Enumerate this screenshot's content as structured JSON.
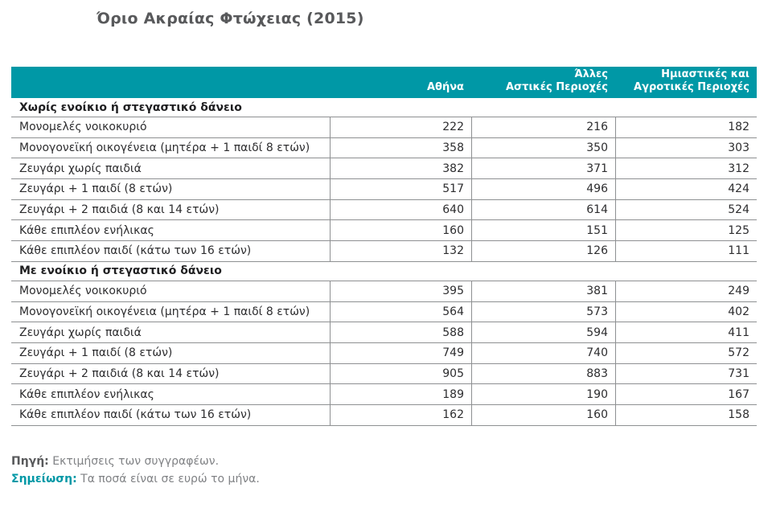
{
  "title": "Όριο Ακραίας Φτώχειας (2015)",
  "colors": {
    "accent_teal": "#0098a6",
    "title_gray": "#58595b",
    "body_text": "#2d2d2f",
    "grid_line": "#8e9092",
    "footnote_gray": "#808285"
  },
  "table": {
    "columns": [
      {
        "label": "Αθήνα",
        "lines": [
          "Αθήνα"
        ]
      },
      {
        "label": "Άλλες Αστικές Περιοχές",
        "lines": [
          "Άλλες",
          "Αστικές Περιοχές"
        ]
      },
      {
        "label": "Ημιαστικές και Αγροτικές Περιοχές",
        "lines": [
          "Ημιαστικές και",
          "Αγροτικές Περιοχές"
        ]
      }
    ],
    "sections": [
      {
        "header": "Χωρίς ενοίκιο ή στεγαστικό δάνειο",
        "rows": [
          {
            "label": "Μονομελές νοικοκυριό",
            "values": [
              "222",
              "216",
              "182"
            ]
          },
          {
            "label": "Μονογονεϊκή οικογένεια (μητέρα + 1 παιδί 8 ετών)",
            "values": [
              "358",
              "350",
              "303"
            ]
          },
          {
            "label": "Ζευγάρι χωρίς παιδιά",
            "values": [
              "382",
              "371",
              "312"
            ]
          },
          {
            "label": "Ζευγάρι + 1 παιδί (8 ετών)",
            "values": [
              "517",
              "496",
              "424"
            ]
          },
          {
            "label": "Ζευγάρι + 2 παιδιά (8 και 14 ετών)",
            "values": [
              "640",
              "614",
              "524"
            ]
          },
          {
            "label": "Κάθε επιπλέον ενήλικας",
            "values": [
              "160",
              "151",
              "125"
            ]
          },
          {
            "label": "Κάθε επιπλέον παιδί (κάτω των 16 ετών)",
            "values": [
              "132",
              "126",
              "111"
            ]
          }
        ]
      },
      {
        "header": "Με ενοίκιο ή στεγαστικό δάνειο",
        "rows": [
          {
            "label": "Μονομελές νοικοκυριό",
            "values": [
              "395",
              "381",
              "249"
            ]
          },
          {
            "label": "Μονογονεϊκή οικογένεια (μητέρα + 1 παιδί 8 ετών)",
            "values": [
              "564",
              "573",
              "402"
            ]
          },
          {
            "label": "Ζευγάρι χωρίς παιδιά",
            "values": [
              "588",
              "594",
              "411"
            ]
          },
          {
            "label": "Ζευγάρι + 1 παιδί (8 ετών)",
            "values": [
              "749",
              "740",
              "572"
            ]
          },
          {
            "label": "Ζευγάρι + 2 παιδιά (8 και 14 ετών)",
            "values": [
              "905",
              "883",
              "731"
            ]
          },
          {
            "label": "Κάθε επιπλέον ενήλικας",
            "values": [
              "189",
              "190",
              "167"
            ]
          },
          {
            "label": "Κάθε επιπλέον παιδί (κάτω των 16 ετών)",
            "values": [
              "162",
              "160",
              "158"
            ]
          }
        ]
      }
    ]
  },
  "footer": {
    "source_label": "Πηγή:",
    "source_text": "Εκτιμήσεις των συγγραφέων.",
    "note_label": "Σημείωση:",
    "note_text": "Τα ποσά είναι σε ευρώ το μήνα."
  },
  "chart_data": {
    "type": "table",
    "title": "Όριο Ακραίας Φτώχειας (2015)",
    "columns": [
      "Αθήνα",
      "Άλλες Αστικές Περιοχές",
      "Ημιαστικές και Αγροτικές Περιοχές"
    ],
    "sections": [
      {
        "name": "Χωρίς ενοίκιο ή στεγαστικό δάνειο",
        "rows": [
          [
            "Μονομελές νοικοκυριό",
            222,
            216,
            182
          ],
          [
            "Μονογονεϊκή οικογένεια (μητέρα + 1 παιδί 8 ετών)",
            358,
            350,
            303
          ],
          [
            "Ζευγάρι χωρίς παιδιά",
            382,
            371,
            312
          ],
          [
            "Ζευγάρι + 1 παιδί (8 ετών)",
            517,
            496,
            424
          ],
          [
            "Ζευγάρι + 2 παιδιά (8 και 14 ετών)",
            640,
            614,
            524
          ],
          [
            "Κάθε επιπλέον ενήλικας",
            160,
            151,
            125
          ],
          [
            "Κάθε επιπλέον παιδί (κάτω των 16 ετών)",
            132,
            126,
            111
          ]
        ]
      },
      {
        "name": "Με ενοίκιο ή στεγαστικό δάνειο",
        "rows": [
          [
            "Μονομελές νοικοκυριό",
            395,
            381,
            249
          ],
          [
            "Μονογονεϊκή οικογένεια (μητέρα + 1 παιδί 8 ετών)",
            564,
            573,
            402
          ],
          [
            "Ζευγάρι χωρίς παιδιά",
            588,
            594,
            411
          ],
          [
            "Ζευγάρι + 1 παιδί (8 ετών)",
            749,
            740,
            572
          ],
          [
            "Ζευγάρι + 2 παιδιά (8 και 14 ετών)",
            905,
            883,
            731
          ],
          [
            "Κάθε επιπλέον ενήλικας",
            189,
            190,
            167
          ],
          [
            "Κάθε επιπλέον παιδί (κάτω των 16 ετών)",
            162,
            160,
            158
          ]
        ]
      }
    ],
    "source": "Εκτιμήσεις των συγγραφέων.",
    "note": "Τα ποσά είναι σε ευρώ το μήνα."
  }
}
